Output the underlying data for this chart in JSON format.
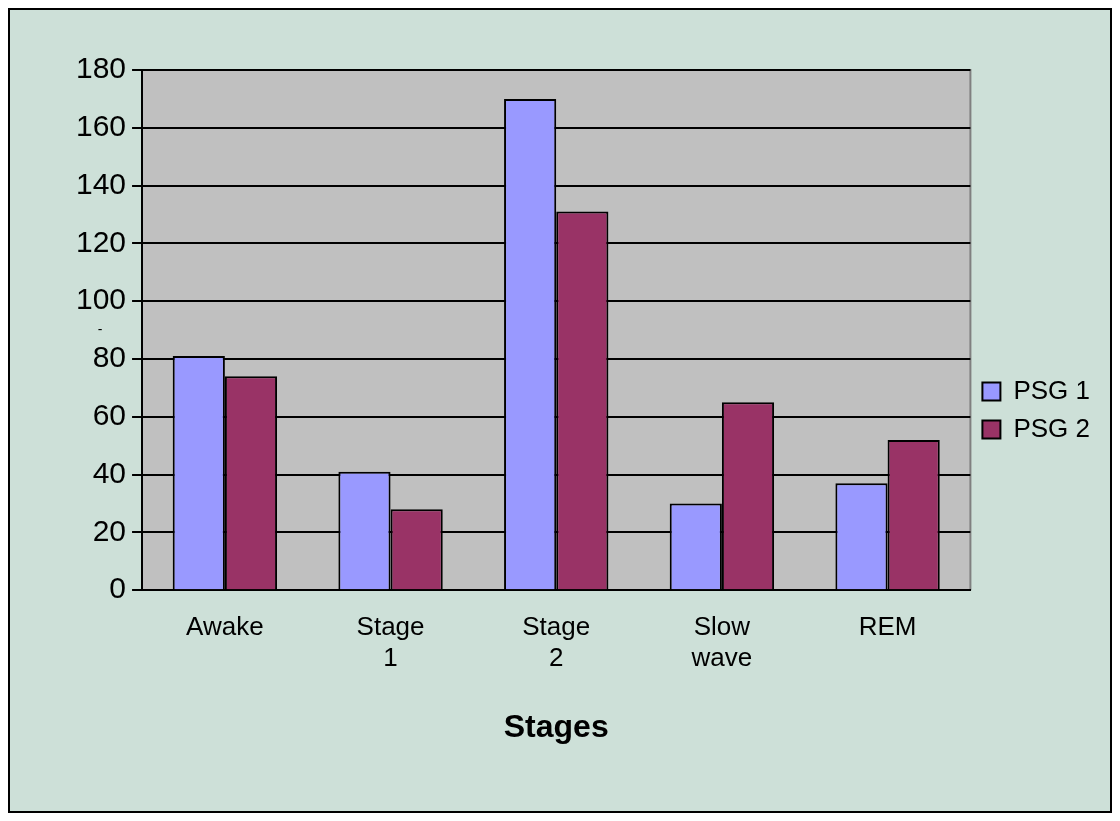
{
  "chart_data": {
    "type": "bar",
    "xlabel": "Stages",
    "annotations": [
      "-"
    ],
    "categories": [
      "Awake",
      "Stage 1",
      "Stage 2",
      "Slow wave",
      "REM"
    ],
    "series": [
      {
        "name": "PSG 1",
        "color": "#9999ff",
        "values": [
          81,
          41,
          170,
          30,
          37
        ]
      },
      {
        "name": "PSG 2",
        "color": "#993366",
        "values": [
          74,
          28,
          131,
          65,
          52
        ]
      }
    ],
    "ylim": [
      0,
      180
    ],
    "yticks": [
      0,
      20,
      40,
      60,
      80,
      100,
      120,
      140,
      160,
      180
    ],
    "grid": "y",
    "legend": "right"
  }
}
